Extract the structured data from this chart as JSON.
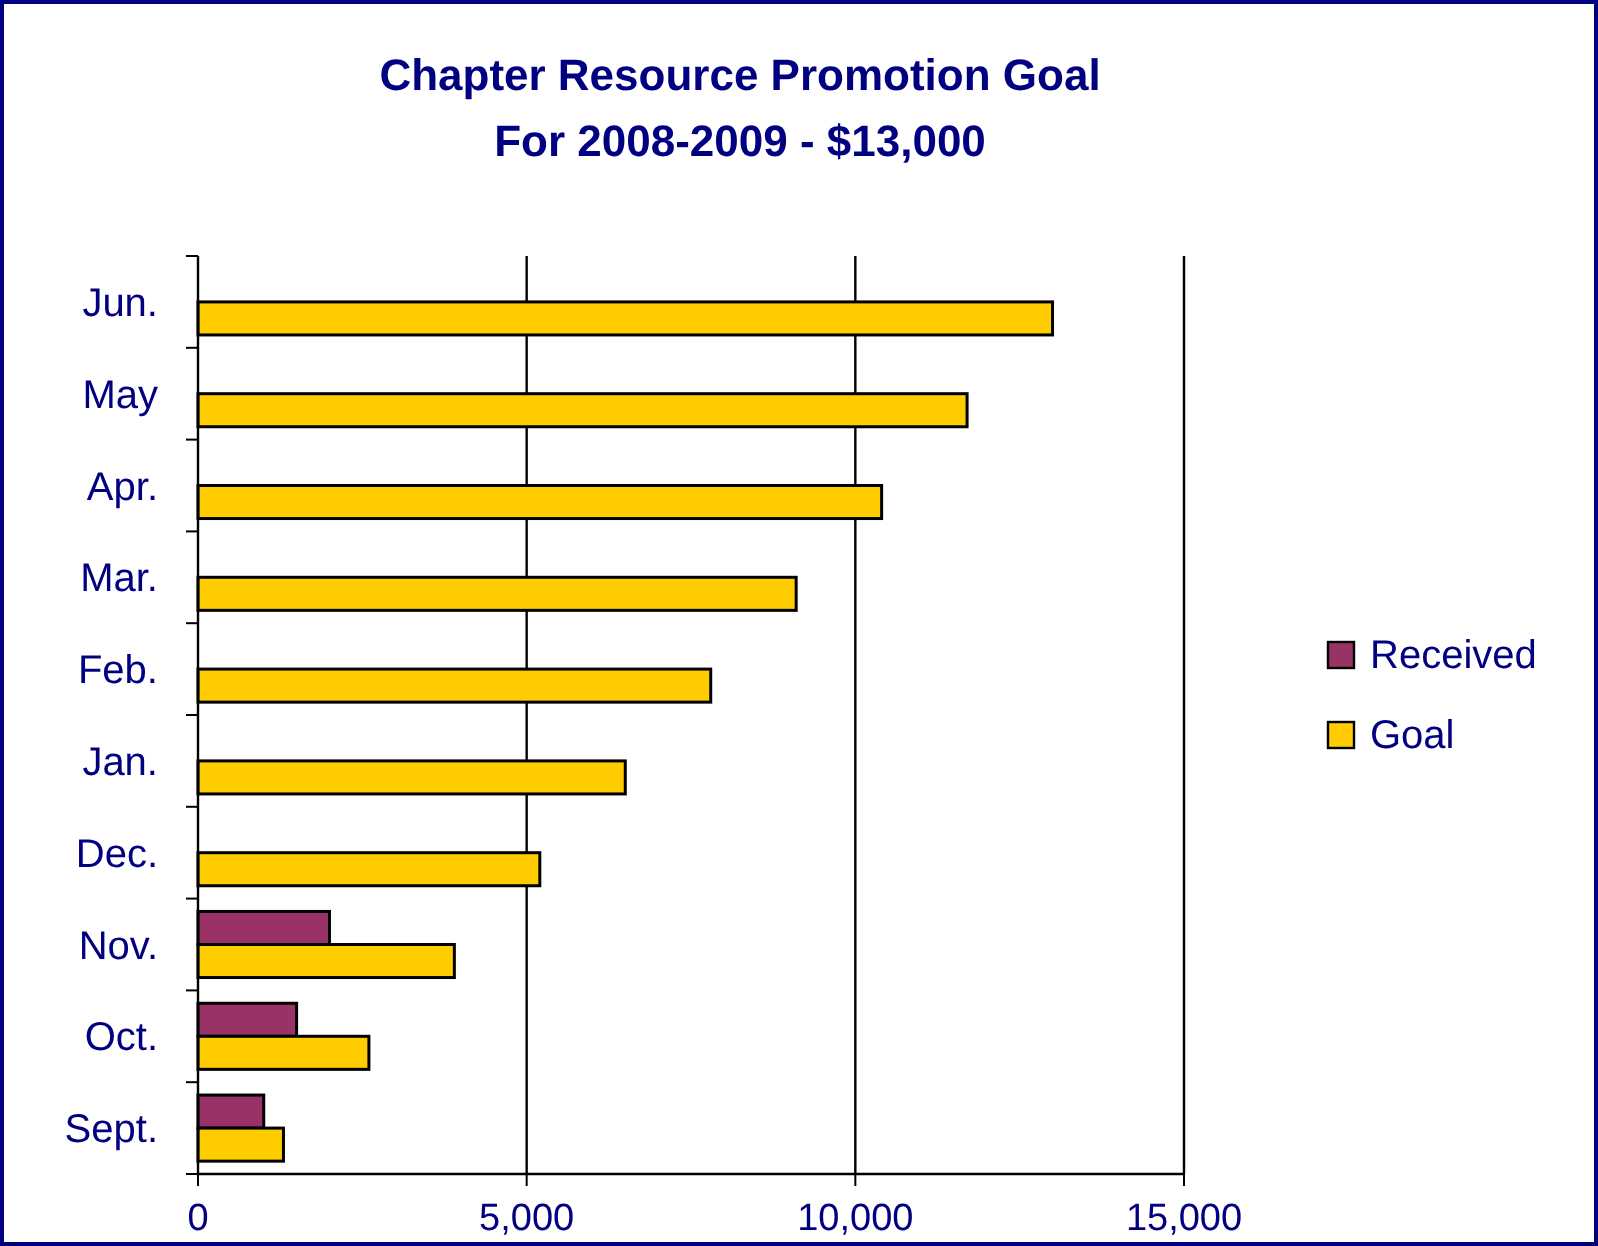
{
  "chart_data": {
    "type": "bar",
    "orientation": "horizontal",
    "title": "Chapter Resource Promotion Goal\nFor 2008-2009 - $13,000",
    "categories": [
      "Jun.",
      "May",
      "Apr.",
      "Mar.",
      "Feb.",
      "Jan.",
      "Dec.",
      "Nov.",
      "Oct.",
      "Sept."
    ],
    "series": [
      {
        "name": "Received",
        "color": "#993366",
        "values": [
          null,
          null,
          null,
          null,
          null,
          null,
          null,
          2000,
          1500,
          1000
        ]
      },
      {
        "name": "Goal",
        "color": "#ffcc00",
        "values": [
          13000,
          11700,
          10400,
          9100,
          7800,
          6500,
          5200,
          3900,
          2600,
          1300
        ]
      }
    ],
    "xlim": [
      0,
      15000
    ],
    "xticks": [
      {
        "value": 0,
        "label": "0"
      },
      {
        "value": 5000,
        "label": "5,000"
      },
      {
        "value": 10000,
        "label": "10,000"
      },
      {
        "value": 15000,
        "label": "15,000"
      }
    ],
    "grid": "x",
    "legend": "right"
  }
}
